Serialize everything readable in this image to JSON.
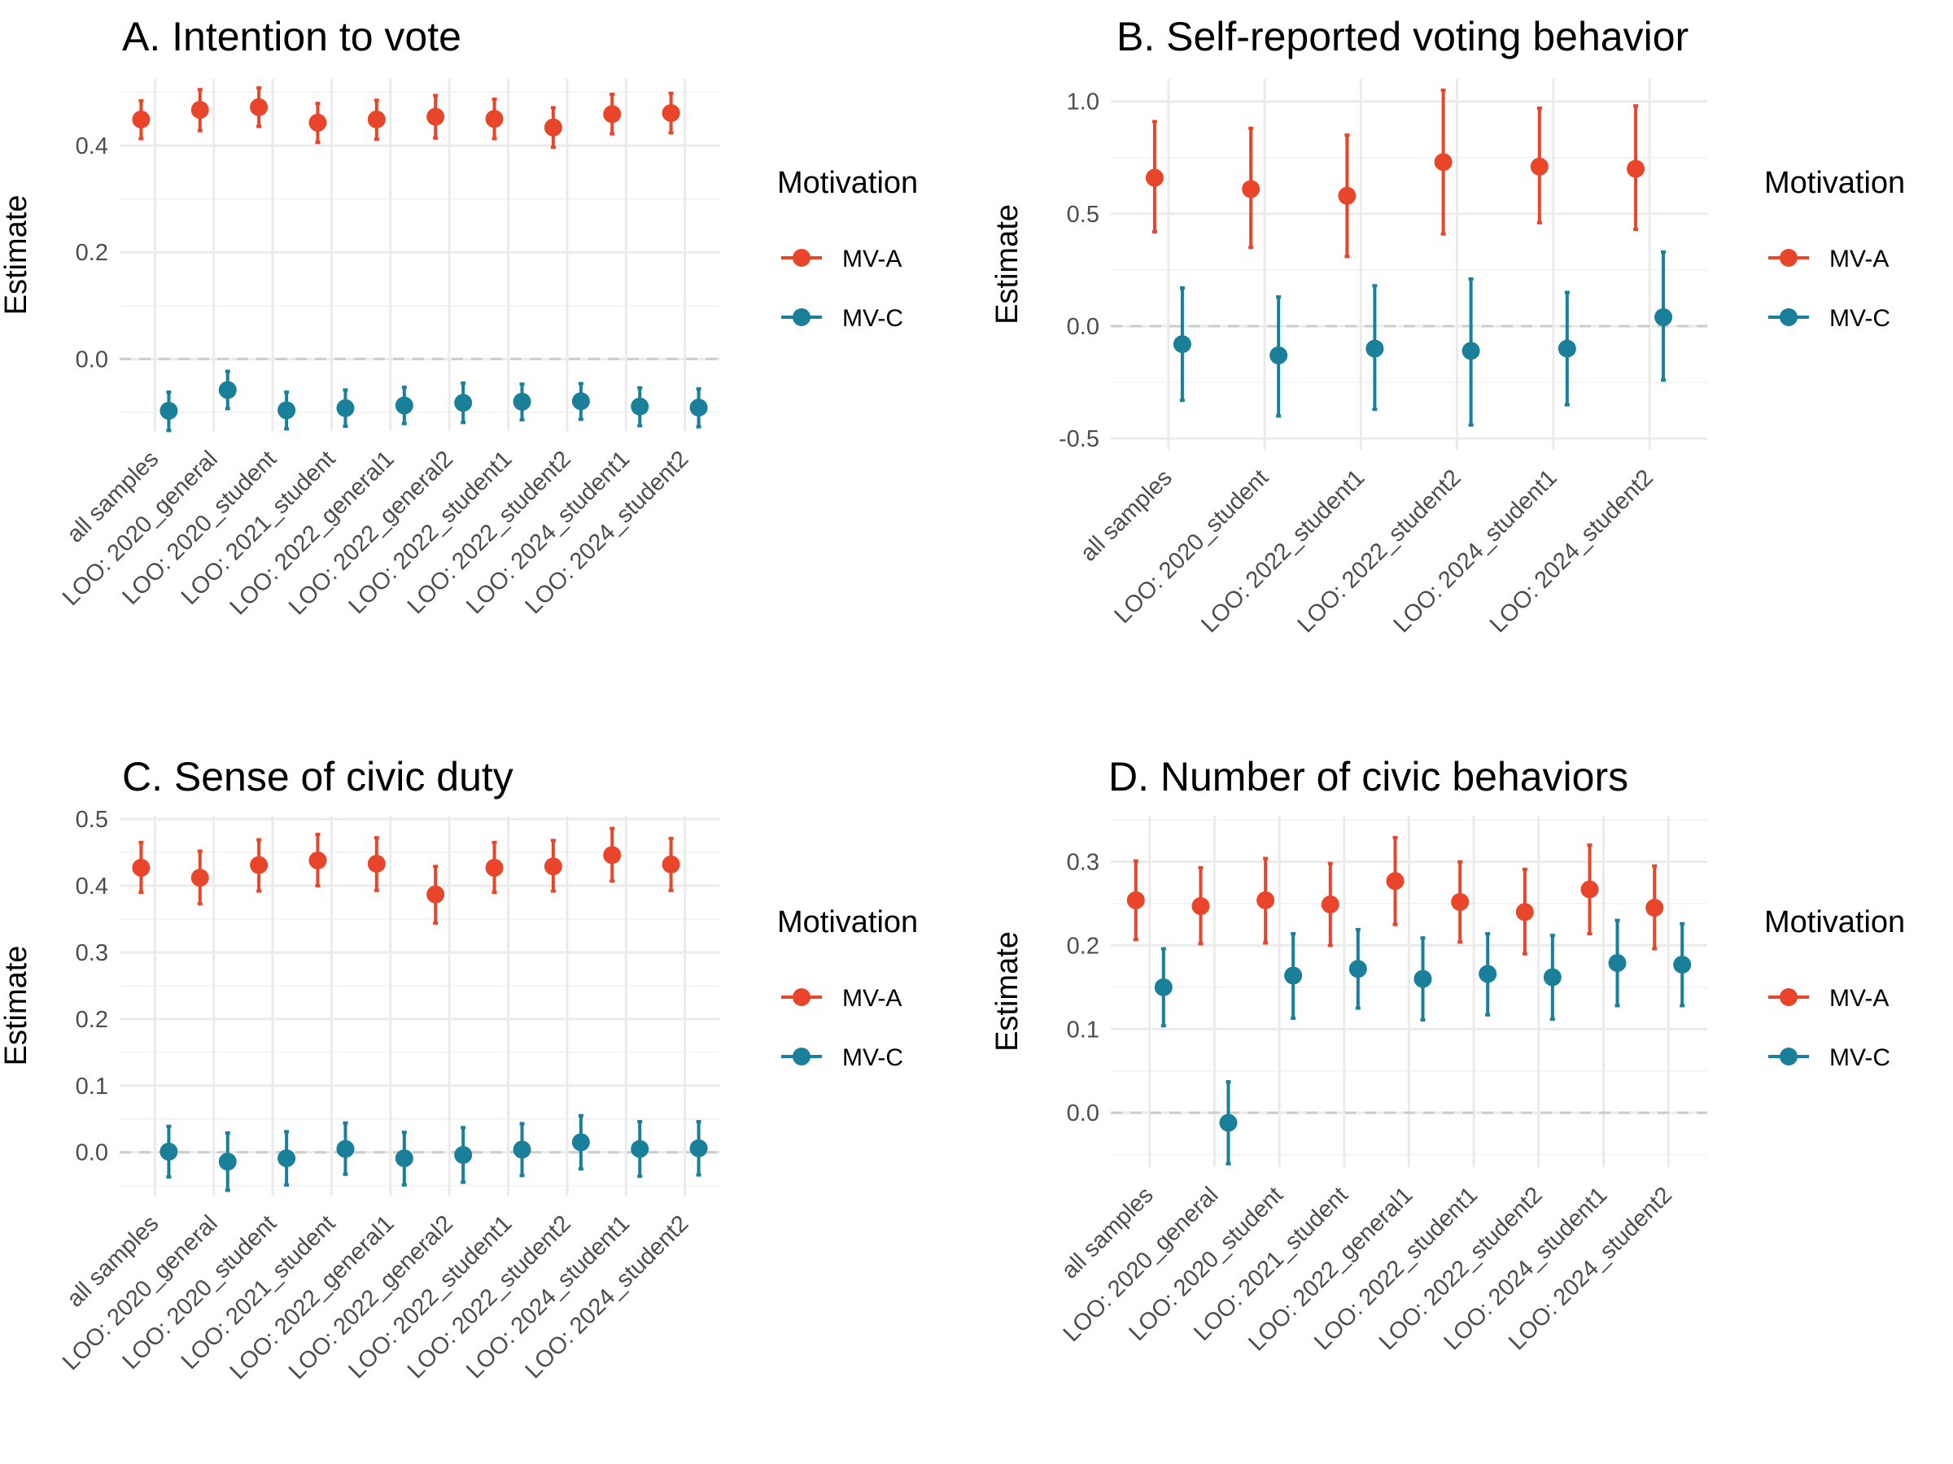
{
  "legend": {
    "title": "Motivation",
    "entries": [
      "MV-A",
      "MV-C"
    ]
  },
  "colors": {
    "MV-A": "#e8452a",
    "MV-C": "#1a7f99"
  },
  "chart_data": [
    {
      "type": "scatter",
      "title": "A. Intention to vote",
      "xlabel": "",
      "ylabel": "Estimate",
      "ylim": [
        -0.135,
        0.525
      ],
      "yticks": [
        0.0,
        0.2,
        0.4
      ],
      "ytick_labels": [
        "0.0",
        "0.2",
        "0.4"
      ],
      "grid": true,
      "legend_position": "right",
      "categories": [
        "all samples",
        "LOO: 2020_general",
        "LOO: 2020_student",
        "LOO: 2021_student",
        "LOO: 2022_general1",
        "LOO: 2022_general2",
        "LOO: 2022_student1",
        "LOO: 2022_student2",
        "LOO: 2024_student1",
        "LOO: 2024_student2"
      ],
      "series": [
        {
          "name": "MV-A",
          "values": [
            0.449,
            0.467,
            0.472,
            0.443,
            0.449,
            0.454,
            0.45,
            0.434,
            0.459,
            0.461
          ],
          "lower": [
            0.413,
            0.428,
            0.436,
            0.406,
            0.412,
            0.414,
            0.413,
            0.397,
            0.422,
            0.424
          ],
          "upper": [
            0.484,
            0.505,
            0.508,
            0.479,
            0.485,
            0.494,
            0.487,
            0.471,
            0.496,
            0.498
          ]
        },
        {
          "name": "MV-C",
          "values": [
            -0.097,
            -0.058,
            -0.096,
            -0.092,
            -0.087,
            -0.082,
            -0.08,
            -0.079,
            -0.089,
            -0.091
          ],
          "lower": [
            -0.134,
            -0.093,
            -0.131,
            -0.126,
            -0.121,
            -0.119,
            -0.114,
            -0.113,
            -0.125,
            -0.127
          ],
          "upper": [
            -0.062,
            -0.023,
            -0.062,
            -0.058,
            -0.053,
            -0.045,
            -0.047,
            -0.046,
            -0.054,
            -0.056
          ]
        }
      ]
    },
    {
      "type": "scatter",
      "title": "B. Self-reported voting behavior",
      "xlabel": "",
      "ylabel": "Estimate",
      "ylim": [
        -0.55,
        1.1
      ],
      "yticks": [
        -0.5,
        0.0,
        0.5,
        1.0
      ],
      "ytick_labels": [
        "-0.5",
        "0.0",
        "0.5",
        "1.0"
      ],
      "grid": true,
      "legend_position": "right",
      "categories": [
        "all samples",
        "LOO: 2020_student",
        "LOO: 2022_student1",
        "LOO: 2022_student2",
        "LOO: 2024_student1",
        "LOO: 2024_student2"
      ],
      "series": [
        {
          "name": "MV-A",
          "values": [
            0.66,
            0.61,
            0.58,
            0.73,
            0.71,
            0.7
          ],
          "lower": [
            0.42,
            0.35,
            0.31,
            0.41,
            0.46,
            0.43
          ],
          "upper": [
            0.91,
            0.88,
            0.85,
            1.05,
            0.97,
            0.98
          ]
        },
        {
          "name": "MV-C",
          "values": [
            -0.08,
            -0.13,
            -0.1,
            -0.11,
            -0.1,
            0.04
          ],
          "lower": [
            -0.33,
            -0.4,
            -0.37,
            -0.44,
            -0.35,
            -0.24
          ],
          "upper": [
            0.17,
            0.13,
            0.18,
            0.21,
            0.15,
            0.33
          ]
        }
      ]
    },
    {
      "type": "scatter",
      "title": "C. Sense of civic duty",
      "xlabel": "",
      "ylabel": "Estimate",
      "ylim": [
        -0.065,
        0.505
      ],
      "yticks": [
        0.0,
        0.1,
        0.2,
        0.3,
        0.4,
        0.5
      ],
      "ytick_labels": [
        "0.0",
        "0.1",
        "0.2",
        "0.3",
        "0.4",
        "0.5"
      ],
      "grid": true,
      "legend_position": "right",
      "categories": [
        "all samples",
        "LOO: 2020_general",
        "LOO: 2020_student",
        "LOO: 2021_student",
        "LOO: 2022_general1",
        "LOO: 2022_general2",
        "LOO: 2022_student1",
        "LOO: 2022_student2",
        "LOO: 2024_student1",
        "LOO: 2024_student2"
      ],
      "series": [
        {
          "name": "MV-A",
          "values": [
            0.427,
            0.412,
            0.431,
            0.438,
            0.433,
            0.387,
            0.427,
            0.429,
            0.446,
            0.432
          ],
          "lower": [
            0.39,
            0.373,
            0.392,
            0.4,
            0.393,
            0.344,
            0.39,
            0.392,
            0.407,
            0.393
          ],
          "upper": [
            0.465,
            0.452,
            0.469,
            0.477,
            0.472,
            0.429,
            0.465,
            0.468,
            0.486,
            0.471
          ]
        },
        {
          "name": "MV-C",
          "values": [
            0.001,
            -0.014,
            -0.009,
            0.005,
            -0.009,
            -0.004,
            0.004,
            0.015,
            0.005,
            0.006
          ],
          "lower": [
            -0.037,
            -0.057,
            -0.049,
            -0.033,
            -0.049,
            -0.045,
            -0.035,
            -0.025,
            -0.036,
            -0.034
          ],
          "upper": [
            0.039,
            0.029,
            0.031,
            0.044,
            0.03,
            0.037,
            0.043,
            0.055,
            0.046,
            0.046
          ]
        }
      ]
    },
    {
      "type": "scatter",
      "title": "D. Number of civic behaviors",
      "xlabel": "",
      "ylabel": "Estimate",
      "ylim": [
        -0.065,
        0.355
      ],
      "yticks": [
        0.0,
        0.1,
        0.2,
        0.3
      ],
      "ytick_labels": [
        "0.0",
        "0.1",
        "0.2",
        "0.3"
      ],
      "grid": true,
      "legend_position": "right",
      "categories": [
        "all samples",
        "LOO: 2020_general",
        "LOO: 2020_student",
        "LOO: 2021_student",
        "LOO: 2022_general1",
        "LOO: 2022_student1",
        "LOO: 2022_student2",
        "LOO: 2024_student1",
        "LOO: 2024_student2"
      ],
      "series": [
        {
          "name": "MV-A",
          "values": [
            0.254,
            0.247,
            0.254,
            0.249,
            0.277,
            0.252,
            0.24,
            0.267,
            0.245
          ],
          "lower": [
            0.207,
            0.202,
            0.203,
            0.2,
            0.225,
            0.204,
            0.19,
            0.214,
            0.196
          ],
          "upper": [
            0.301,
            0.293,
            0.304,
            0.298,
            0.329,
            0.3,
            0.291,
            0.32,
            0.295
          ]
        },
        {
          "name": "MV-C",
          "values": [
            0.15,
            -0.012,
            0.164,
            0.172,
            0.16,
            0.166,
            0.162,
            0.179,
            0.177
          ],
          "lower": [
            0.104,
            -0.061,
            0.113,
            0.125,
            0.111,
            0.117,
            0.112,
            0.128,
            0.128
          ],
          "upper": [
            0.196,
            0.037,
            0.214,
            0.219,
            0.209,
            0.214,
            0.212,
            0.23,
            0.226
          ]
        }
      ]
    }
  ]
}
